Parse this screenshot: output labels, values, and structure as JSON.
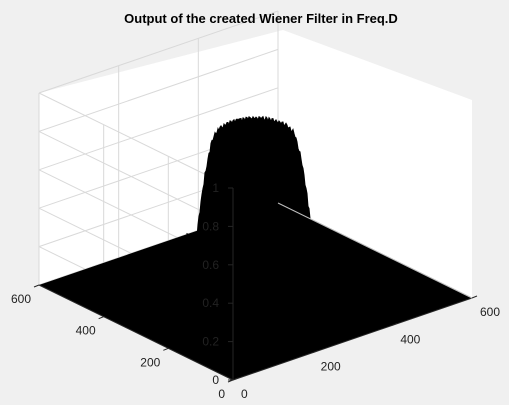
{
  "chart_data": {
    "type": "surface",
    "title": "Output of the created Wiener Filter in Freq.D",
    "xlabel": "",
    "ylabel": "",
    "zlabel": "",
    "xlim": [
      0,
      600
    ],
    "ylim": [
      0,
      600
    ],
    "zlim": [
      0,
      1
    ],
    "x_ticks": [
      "0",
      "200",
      "400",
      "600"
    ],
    "y_ticks": [
      "0",
      "200",
      "400",
      "600"
    ],
    "z_ticks": [
      "0",
      "0.2",
      "0.4",
      "0.6",
      "0.8",
      "1"
    ],
    "grid": true,
    "surface_color": "#000000",
    "peak": {
      "x_center": 285,
      "y_center": 285,
      "max_value": 0.88,
      "shoulder_value": 0.36
    }
  },
  "colors": {
    "figure_background": "#f0f0f0",
    "axes_background": "#ffffff",
    "grid": "#d9d9d9",
    "axis_lines": "#262626"
  }
}
